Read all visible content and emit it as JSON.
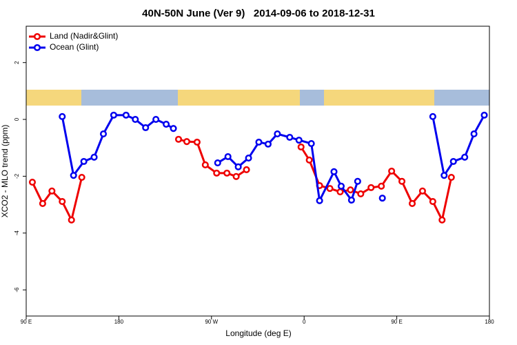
{
  "chart_data": {
    "type": "line",
    "title": "40N-50N June (Ver 9)   2014-09-06 to 2018-12-31",
    "xlabel": "Longitude (deg E)",
    "ylabel": "XCO2 - MLO trend (ppm)",
    "xlim": [
      90,
      540
    ],
    "xticks": [
      {
        "value": 90,
        "label": "90 E"
      },
      180,
      {
        "value": 270,
        "label": "90 W"
      },
      {
        "value": 360,
        "label": "0"
      },
      {
        "value": 450,
        "label": "90 E"
      },
      {
        "value": 540,
        "label": "180"
      }
    ],
    "ylim": [
      -6.92,
      3.28
    ],
    "yticks": [
      -6,
      -4,
      -2,
      0,
      2
    ],
    "legend": "top-left",
    "series": [
      {
        "name": "Land (Nadir&Glint)",
        "color": "#ee0000",
        "x": [
          96,
          106,
          115,
          125,
          134,
          144,
          200,
          238,
          246,
          256,
          264,
          275,
          285,
          294,
          304,
          320,
          357,
          365,
          375,
          385,
          395,
          405,
          415,
          425,
          435,
          445,
          455,
          465,
          475,
          485,
          494,
          503
        ],
        "values": [
          -2.21,
          -2.96,
          -2.52,
          -2.89,
          -3.54,
          -2.04,
          null,
          -0.7,
          -0.78,
          -0.8,
          -1.6,
          -1.89,
          -1.89,
          -2.01,
          -1.77,
          null,
          -0.97,
          -1.43,
          -2.33,
          -2.43,
          -2.55,
          -2.48,
          -2.62,
          -2.4,
          -2.35,
          -1.82,
          -2.18,
          -2.96,
          -2.52,
          -2.89,
          -3.54,
          -2.04
        ]
      },
      {
        "name": "Ocean (Glint)",
        "color": "#0000ee",
        "x": [
          125,
          136,
          146,
          156,
          165,
          175,
          187,
          196,
          206,
          216,
          226,
          233,
          255,
          276,
          286,
          296,
          306,
          316,
          325,
          334,
          346,
          355,
          367,
          375,
          389,
          396,
          406,
          412,
          425,
          436,
          460,
          485,
          496,
          505,
          516,
          525,
          535
        ],
        "values": [
          0.1,
          -1.97,
          -1.48,
          -1.33,
          -0.51,
          0.15,
          0.15,
          0.0,
          -0.29,
          0.0,
          -0.17,
          -0.32,
          null,
          -1.53,
          -1.31,
          -1.67,
          -1.36,
          -0.8,
          -0.87,
          -0.51,
          -0.63,
          -0.73,
          -0.85,
          -2.86,
          -1.84,
          -2.35,
          -2.84,
          -2.18,
          null,
          -2.77,
          null,
          0.1,
          -1.97,
          -1.48,
          -1.33,
          -0.51,
          0.15
        ]
      }
    ]
  }
}
